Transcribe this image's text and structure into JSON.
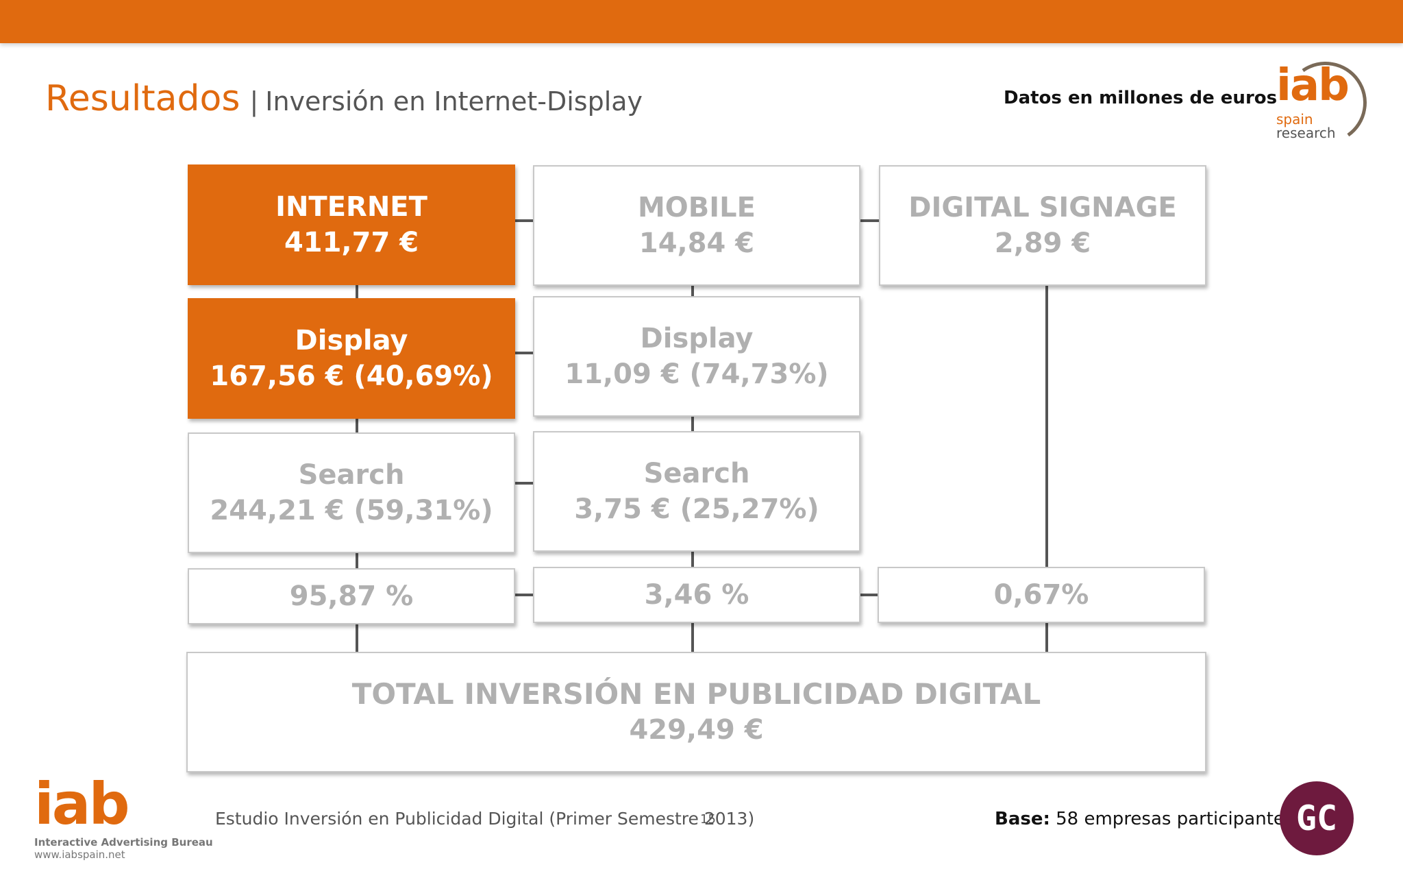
{
  "header": {
    "title": "Resultados",
    "separator": "|",
    "subtitle": "Inversión en Internet-Display",
    "units_note": "Datos en millones de euros"
  },
  "logo_top": {
    "brand": "iab",
    "line1": "spain",
    "line2": "research"
  },
  "diagram": {
    "columns": [
      {
        "header": {
          "title": "INTERNET",
          "value": "411,77 €"
        },
        "display": {
          "label": "Display",
          "value": "167,56 € (40,69%)"
        },
        "search": {
          "label": "Search",
          "value": "244,21 € (59,31%)"
        },
        "share": "95,87 %"
      },
      {
        "header": {
          "title": "MOBILE",
          "value": "14,84 €"
        },
        "display": {
          "label": "Display",
          "value": "11,09 € (74,73%)"
        },
        "search": {
          "label": "Search",
          "value": "3,75 € (25,27%)"
        },
        "share": "3,46 %"
      },
      {
        "header": {
          "title": "DIGITAL SIGNAGE",
          "value": "2,89 €"
        },
        "share": "0,67%"
      }
    ],
    "total": {
      "title": "TOTAL INVERSIÓN EN PUBLICIDAD DIGITAL",
      "value": "429,49 €"
    },
    "colors": {
      "accent": "#e06a0f",
      "inactive_text": "#b0b0b0",
      "border": "#c8c8c8"
    }
  },
  "footer": {
    "logo_brand": "iab",
    "logo_line1": "Interactive Advertising Bureau",
    "logo_line2": "www.iabspain.net",
    "study": "Estudio Inversión en Publicidad Digital (Primer Semestre 2013)",
    "page_number": "15",
    "base_label": "Base:",
    "base_text": " 58 empresas participantes",
    "partner_logo": "GC"
  }
}
